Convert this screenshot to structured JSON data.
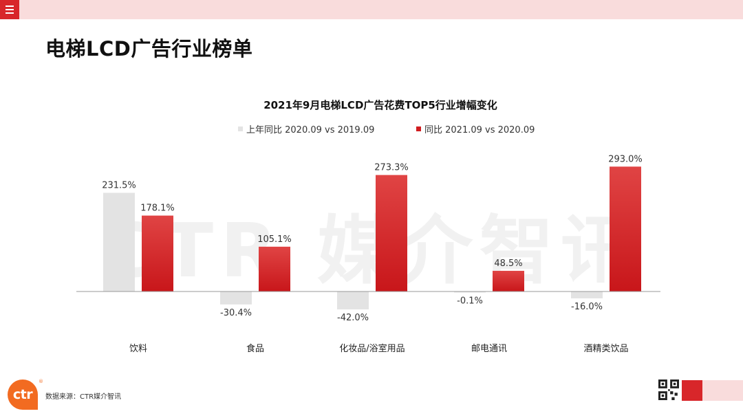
{
  "page": {
    "title": "电梯LCD广告行业榜单",
    "watermark": "CTR 媒介智讯",
    "source": "数据来源：CTR媒介智讯",
    "logo_text": "ctr",
    "registered_mark": "®"
  },
  "colors": {
    "accent": "#d8262a",
    "band": "#f9dcdc",
    "series_prev": "#e3e3e3",
    "series_curr": "#d01c1f",
    "logo": "#f26b21"
  },
  "chart_data": {
    "type": "bar",
    "title": "2021年9月电梯LCD广告花费TOP5行业增幅变化",
    "categories": [
      "饮料",
      "食品",
      "化妆品/浴室用品",
      "邮电通讯",
      "酒精类饮品"
    ],
    "series": [
      {
        "name": "上年同比 2020.09 vs 2019.09",
        "values": [
          231.5,
          -30.4,
          -42.0,
          -0.1,
          -16.0
        ]
      },
      {
        "name": "同比 2021.09 vs 2020.09",
        "values": [
          178.1,
          105.1,
          273.3,
          48.5,
          293.0
        ]
      }
    ],
    "data_labels": [
      [
        "231.5%",
        "-30.4%",
        "-42.0%",
        "-0.1%",
        "-16.0%"
      ],
      [
        "178.1%",
        "105.1%",
        "273.3%",
        "48.5%",
        "293.0%"
      ]
    ],
    "unit": "%",
    "legend_position": "top",
    "grid": false
  }
}
